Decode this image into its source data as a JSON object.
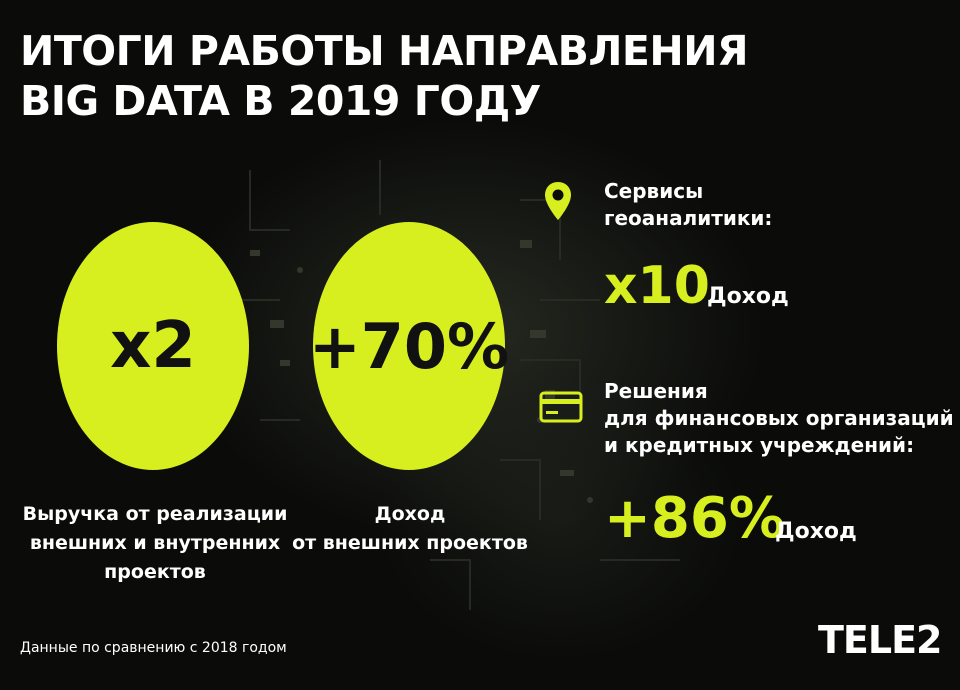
{
  "title": {
    "line1": "ИТОГИ РАБОТЫ НАПРАВЛЕНИЯ",
    "line2": "BIG DATA В 2019 ГОДУ"
  },
  "metrics": [
    {
      "value": "x2",
      "caption_lines": [
        "Выручка от реализации",
        "внешних и внутренних",
        "проектов"
      ]
    },
    {
      "value": "+70%",
      "caption_lines": [
        "Доход",
        "от внешних проектов"
      ]
    }
  ],
  "sections": [
    {
      "icon": "map-pin-icon",
      "title_lines": [
        "Сервисы",
        "геоаналитики:"
      ],
      "value": "x10",
      "unit": "Доход"
    },
    {
      "icon": "credit-card-icon",
      "title_lines": [
        "Решения",
        "для финансовых организаций",
        "и кредитных учреждений:"
      ],
      "value": "+86%",
      "unit": "Доход"
    }
  ],
  "footnote": "Данные по сравнению с 2018 годом",
  "logo": "TELE2",
  "colors": {
    "accent": "#d7ef1f",
    "background": "#0b0c0a",
    "text": "#ffffff"
  }
}
